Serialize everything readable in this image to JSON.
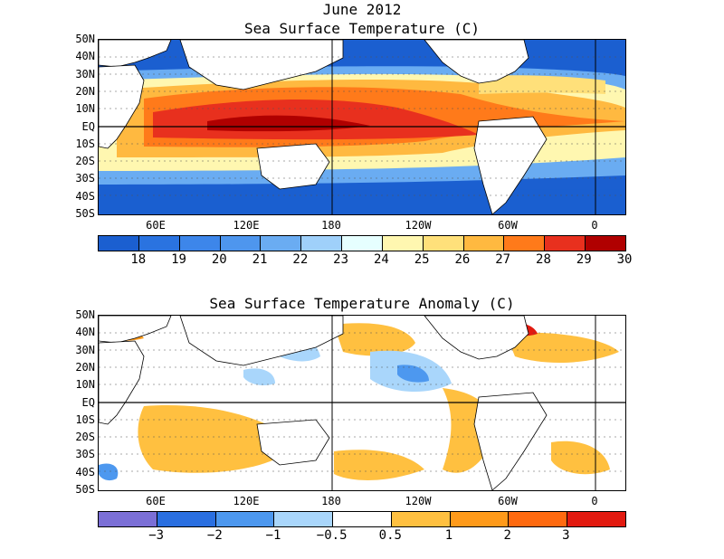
{
  "top_panel": {
    "title_line1": "June 2012",
    "title_line2": "Sea Surface Temperature (C)",
    "colorbar": {
      "colors": [
        "#1b5fd0",
        "#2a73e0",
        "#3d86ea",
        "#4e96ee",
        "#6aacf2",
        "#9fd0fa",
        "#e6ffff",
        "#fff7b0",
        "#ffe07a",
        "#ffb940",
        "#ff7a1a",
        "#e8301e",
        "#b00000"
      ],
      "labels": [
        "18",
        "19",
        "20",
        "21",
        "22",
        "23",
        "24",
        "25",
        "26",
        "27",
        "28",
        "29",
        "30"
      ]
    }
  },
  "bottom_panel": {
    "title": "Sea Surface Temperature Anomaly (C)",
    "colorbar": {
      "colors": [
        "#7b6fd6",
        "#2a6fe0",
        "#4d98ef",
        "#a9d6fb",
        "#ffffff",
        "#ffc040",
        "#ff9a1a",
        "#ff6a10",
        "#e21a10"
      ],
      "labels": [
        "−3",
        "−2",
        "−1",
        "−0.5",
        "0.5",
        "1",
        "2",
        "3"
      ]
    }
  },
  "lat_labels": [
    "50N",
    "40N",
    "30N",
    "20N",
    "10N",
    "EQ",
    "10S",
    "20S",
    "30S",
    "40S",
    "50S"
  ],
  "lon_labels": [
    "60E",
    "120E",
    "180",
    "120W",
    "60W",
    "0"
  ]
}
